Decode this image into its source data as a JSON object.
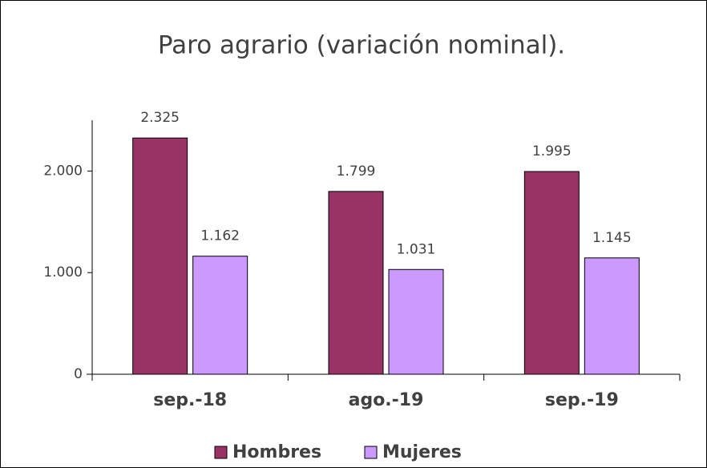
{
  "chart_data": {
    "type": "bar",
    "title": "Paro agrario (variación nominal).",
    "categories": [
      "sep.-18",
      "ago.-19",
      "sep.-19"
    ],
    "series": [
      {
        "name": "Hombres",
        "color": "#993366",
        "values": [
          2325,
          1799,
          1995
        ],
        "value_labels": [
          "2.325",
          "1.799",
          "1.995"
        ]
      },
      {
        "name": "Mujeres",
        "color": "#cc99ff",
        "values": [
          1162,
          1031,
          1145
        ],
        "value_labels": [
          "1.162",
          "1.031",
          "1.145"
        ]
      }
    ],
    "ylim": [
      0,
      2500
    ],
    "yticks": [
      0,
      {
        "value": 1000,
        "label": "1.000"
      },
      {
        "value": 2000,
        "label": "2.000"
      }
    ],
    "grid": false,
    "legend": "bottom"
  }
}
